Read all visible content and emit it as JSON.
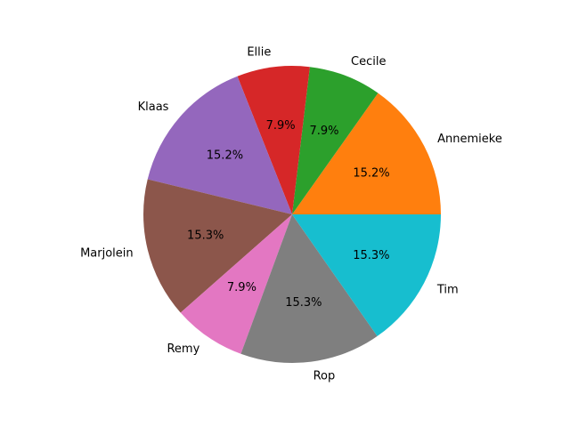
{
  "chart_data": {
    "type": "pie",
    "title": "",
    "start_angle_deg": 0,
    "direction": "counterclockwise",
    "slices": [
      {
        "label": "Annemieke",
        "value": 15.2,
        "pct_label": "15.2%",
        "color": "#ff7f0e"
      },
      {
        "label": "Cecile",
        "value": 7.9,
        "pct_label": "7.9%",
        "color": "#2ca02c"
      },
      {
        "label": "Ellie",
        "value": 7.9,
        "pct_label": "7.9%",
        "color": "#d62728"
      },
      {
        "label": "Klaas",
        "value": 15.2,
        "pct_label": "15.2%",
        "color": "#9467bd"
      },
      {
        "label": "Marjolein",
        "value": 15.3,
        "pct_label": "15.3%",
        "color": "#8c564b"
      },
      {
        "label": "Remy",
        "value": 7.9,
        "pct_label": "7.9%",
        "color": "#e377c2"
      },
      {
        "label": "Rop",
        "value": 15.3,
        "pct_label": "15.3%",
        "color": "#7f7f7f"
      },
      {
        "label": "Tim",
        "value": 15.3,
        "pct_label": "15.3%",
        "color": "#17becf"
      }
    ]
  }
}
